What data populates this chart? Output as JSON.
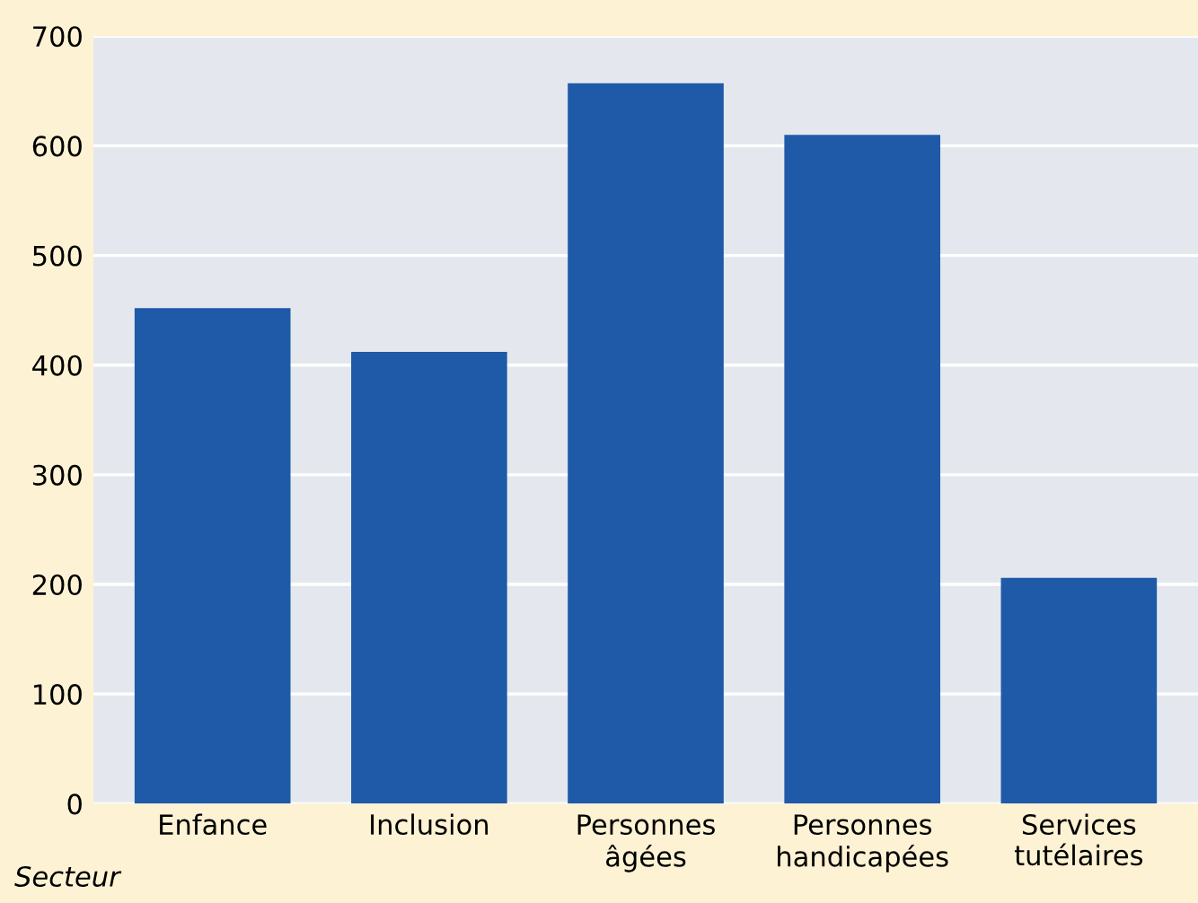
{
  "chart_data": {
    "type": "bar",
    "xlabel": "Secteur",
    "categories": [
      "Enfance",
      "Inclusion",
      "Personnes\nâgées",
      "Personnes\nhandicapées",
      "Services\ntutélaires"
    ],
    "values": [
      452,
      412,
      657,
      610,
      206
    ],
    "color": "#1f5aa8",
    "ylim": [
      0,
      700
    ],
    "yticks": [
      0,
      100,
      200,
      300,
      400,
      500,
      600,
      700
    ],
    "grid": "y"
  }
}
